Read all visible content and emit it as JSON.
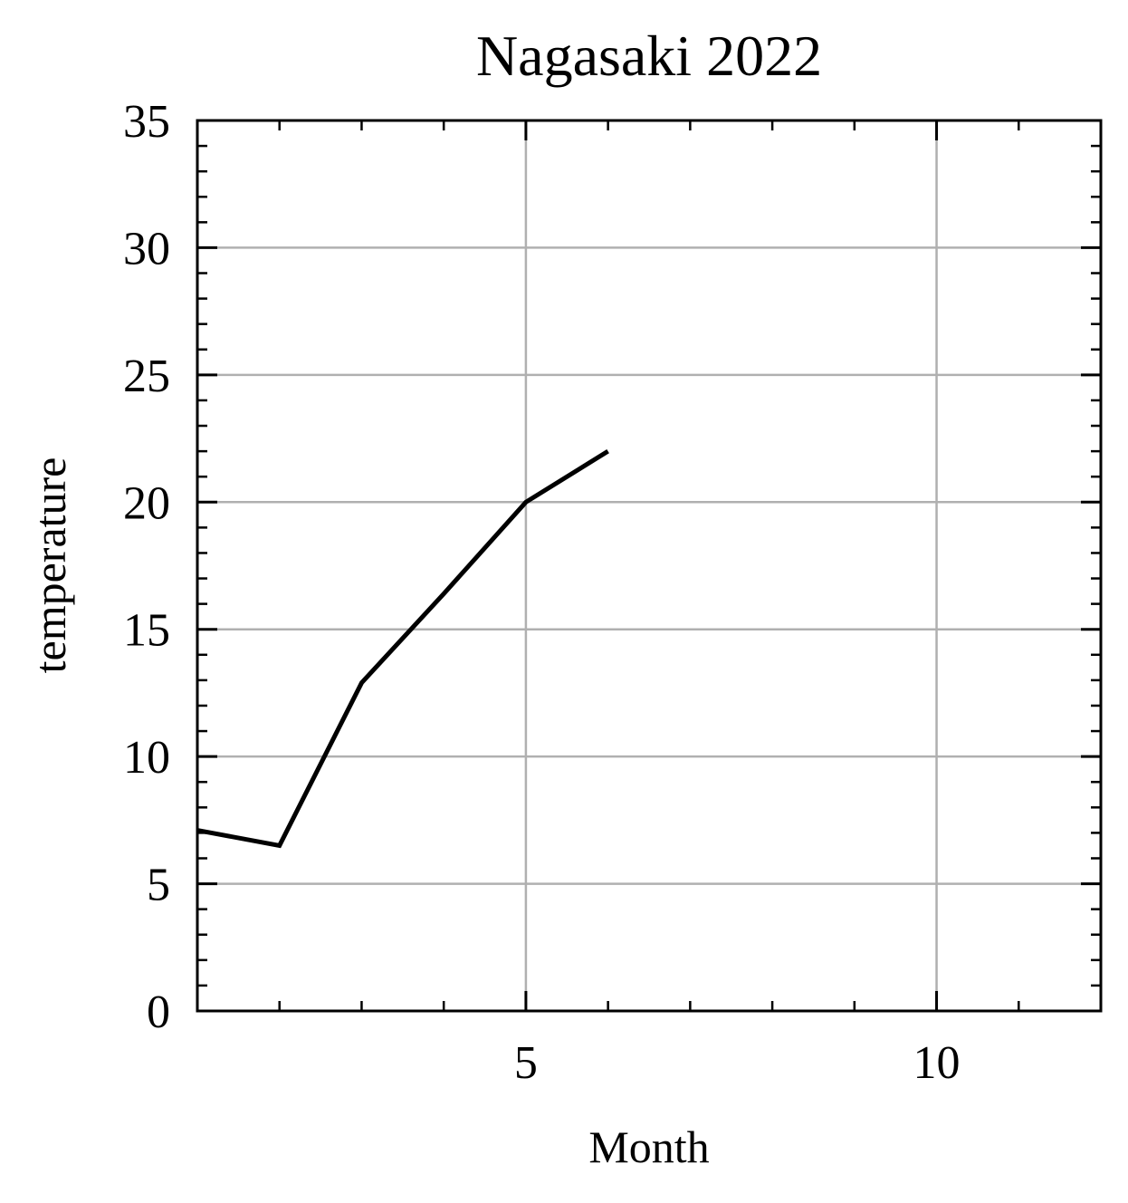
{
  "chart_data": {
    "type": "line",
    "title": "Nagasaki 2022",
    "xlabel": "Month",
    "ylabel": "temperature",
    "xlim": [
      1,
      12
    ],
    "ylim": [
      0,
      35
    ],
    "xticks": [
      5,
      10
    ],
    "yticks": [
      0,
      5,
      10,
      15,
      20,
      25,
      30,
      35
    ],
    "xtick_labels": [
      "5",
      "10"
    ],
    "ytick_labels": [
      "0",
      "5",
      "10",
      "15",
      "20",
      "25",
      "30",
      "35"
    ],
    "grid": true,
    "series": [
      {
        "x": [
          1,
          2,
          3,
          4,
          5,
          6
        ],
        "y": [
          7.1,
          6.5,
          12.9,
          16.4,
          20.0,
          22.0
        ],
        "color": "#000000"
      }
    ],
    "colors": {
      "line": "#000000",
      "grid": "#b0b0b0",
      "frame": "#000000",
      "background": "#ffffff"
    }
  }
}
